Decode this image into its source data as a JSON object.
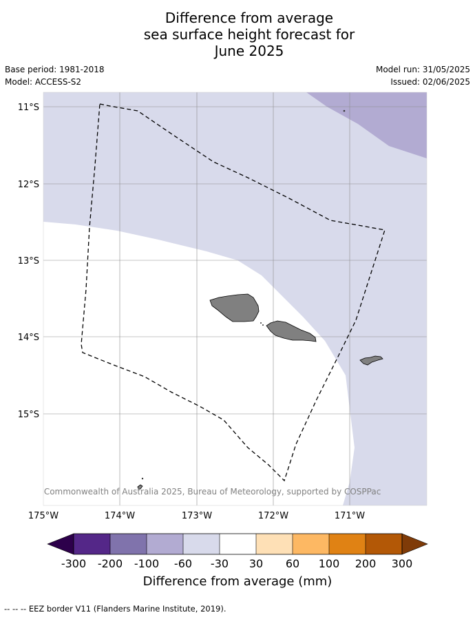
{
  "title_lines": [
    "Difference from average",
    "sea surface height forecast for",
    "June 2025"
  ],
  "base_period": "Base period: 1981-2018",
  "model": "Model: ACCESS-S2",
  "model_run": "Model run: 31/05/2025",
  "issued": "Issued: 02/06/2025",
  "lat_labels": [
    "11°S",
    "12°S",
    "13°S",
    "14°S",
    "15°S"
  ],
  "lon_labels": [
    "175°W",
    "174°W",
    "173°W",
    "172°W",
    "171°W"
  ],
  "copyright": "© Commonwealth of Australia 2025, Bureau of Meteorology, supported by COSPPac",
  "legend": {
    "title": "Difference from average (mm)",
    "ticks": [
      "-300",
      "-200",
      "-100",
      "-60",
      "-30",
      "30",
      "60",
      "100",
      "200",
      "300"
    ],
    "colors": [
      "#2d004b",
      "#542788",
      "#8073ac",
      "#b2abd2",
      "#d8daeb",
      "#ffffff",
      "#fee0b6",
      "#fdb863",
      "#e08214",
      "#b35806",
      "#7f3b08"
    ]
  },
  "footer": "-- -- -- EEZ border V11 (Flanders Marine Institute, 2019)."
}
